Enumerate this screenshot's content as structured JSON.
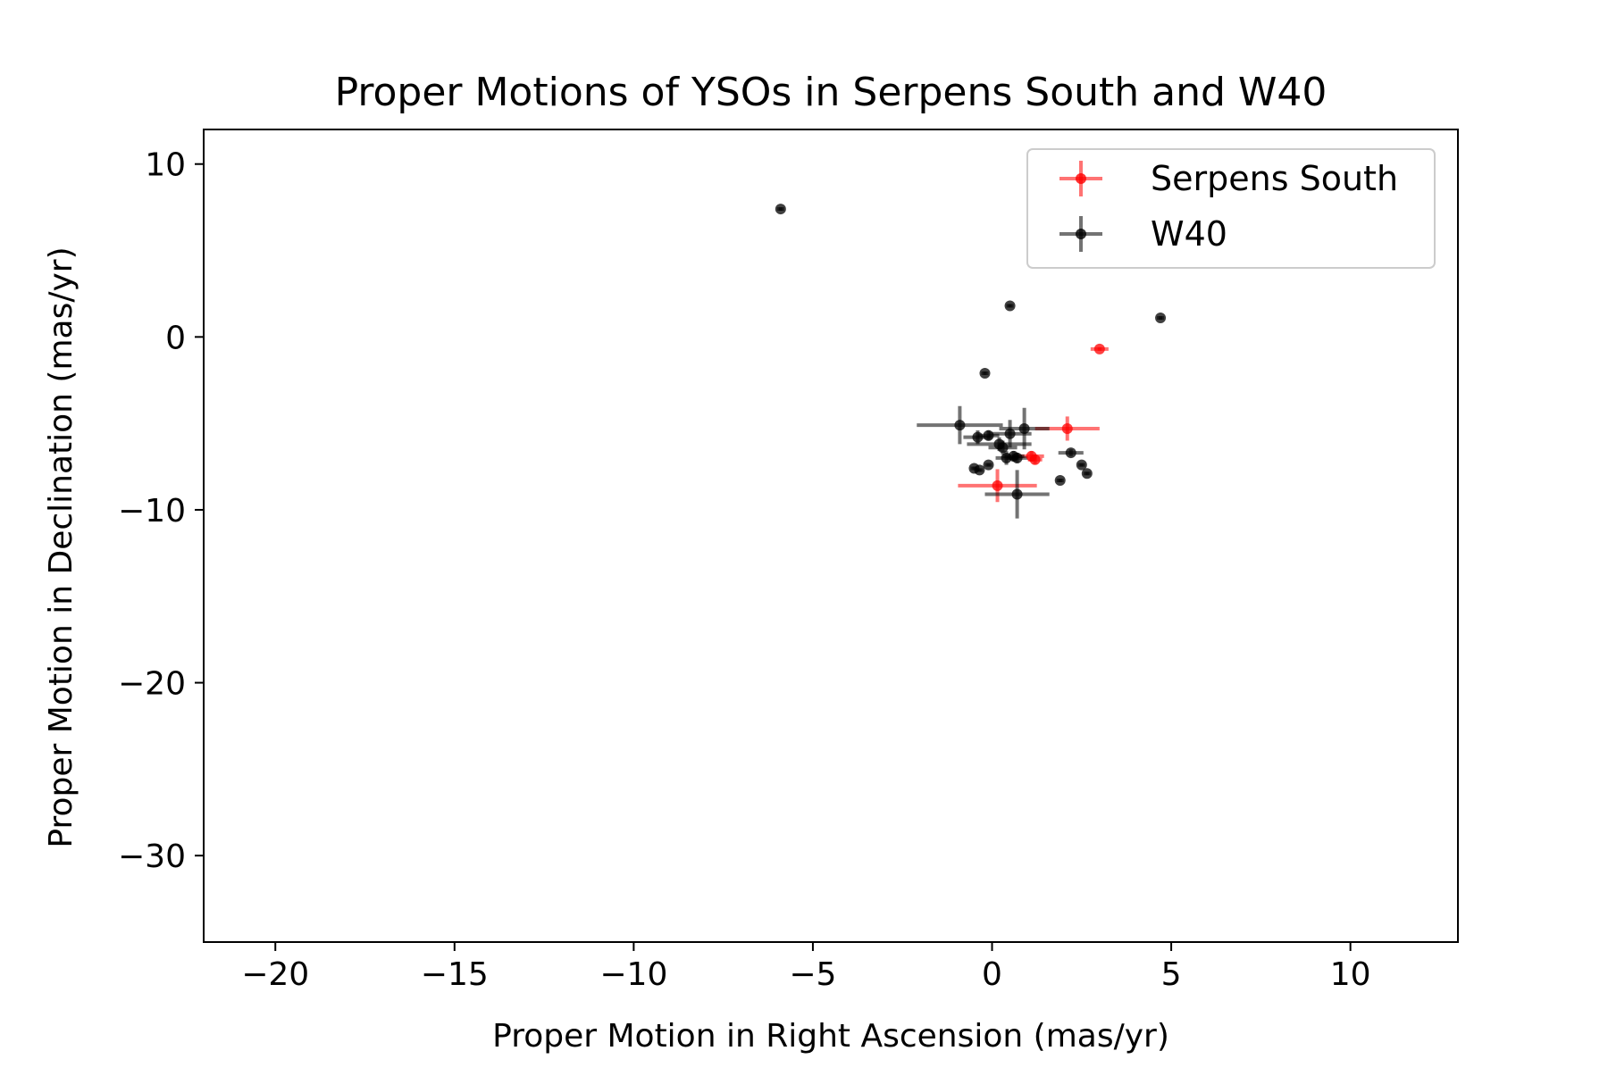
{
  "chart_data": {
    "type": "scatter",
    "title": "Proper Motions of YSOs in Serpens South and W40",
    "xlabel": "Proper Motion in Right Ascension (mas/yr)",
    "ylabel": "Proper Motion in Declination (mas/yr)",
    "xlim": [
      -22,
      13
    ],
    "ylim": [
      -35,
      10
    ],
    "xticks": [
      -20,
      -15,
      -10,
      -5,
      0,
      5,
      10
    ],
    "yticks": [
      10,
      0,
      -10,
      -20,
      -30
    ],
    "xtick_labels": [
      "−20",
      "−15",
      "−10",
      "−5",
      "0",
      "5",
      "10"
    ],
    "ytick_labels": [
      "10",
      "0",
      "−10",
      "−20",
      "−30"
    ],
    "grid": false,
    "legend_position": "top-right",
    "series": [
      {
        "name": "Serpens South",
        "color": "#ff0000",
        "points": [
          {
            "x": 3.0,
            "y": -0.7,
            "xerr": 0.25,
            "yerr": 0.1
          },
          {
            "x": 2.1,
            "y": -5.3,
            "xerr": 0.9,
            "yerr": 0.7
          },
          {
            "x": 1.1,
            "y": -6.9,
            "xerr": 0.35,
            "yerr": 0.3
          },
          {
            "x": 1.2,
            "y": -7.1,
            "xerr": 0.2,
            "yerr": 0.25
          },
          {
            "x": 0.15,
            "y": -8.6,
            "xerr": 1.1,
            "yerr": 0.95
          }
        ]
      },
      {
        "name": "W40",
        "color": "#000000",
        "points": [
          {
            "x": -5.9,
            "y": 7.4,
            "xerr": 0.1,
            "yerr": 0.1
          },
          {
            "x": 0.5,
            "y": 1.8,
            "xerr": 0.1,
            "yerr": 0.1
          },
          {
            "x": 4.7,
            "y": 1.1,
            "xerr": 0.1,
            "yerr": 0.1
          },
          {
            "x": -0.2,
            "y": -2.1,
            "xerr": 0.1,
            "yerr": 0.1
          },
          {
            "x": -0.9,
            "y": -5.1,
            "xerr": 1.2,
            "yerr": 1.1
          },
          {
            "x": 0.9,
            "y": -5.3,
            "xerr": 0.7,
            "yerr": 1.2
          },
          {
            "x": 0.5,
            "y": -5.6,
            "xerr": 0.6,
            "yerr": 0.8
          },
          {
            "x": -0.4,
            "y": -5.8,
            "xerr": 0.4,
            "yerr": 0.4
          },
          {
            "x": -0.1,
            "y": -5.7,
            "xerr": 0.3,
            "yerr": 0.3
          },
          {
            "x": 0.2,
            "y": -6.2,
            "xerr": 0.9,
            "yerr": 0.4
          },
          {
            "x": 0.3,
            "y": -6.4,
            "xerr": 0.4,
            "yerr": 0.4
          },
          {
            "x": 2.2,
            "y": -6.7,
            "xerr": 0.35,
            "yerr": 0.2
          },
          {
            "x": 0.6,
            "y": -6.9,
            "xerr": 0.3,
            "yerr": 0.3
          },
          {
            "x": 0.7,
            "y": -7.0,
            "xerr": 0.3,
            "yerr": 0.3
          },
          {
            "x": 0.4,
            "y": -7.0,
            "xerr": 0.3,
            "yerr": 0.4
          },
          {
            "x": -0.1,
            "y": -7.4,
            "xerr": 0.1,
            "yerr": 0.1
          },
          {
            "x": 2.5,
            "y": -7.4,
            "xerr": 0.1,
            "yerr": 0.1
          },
          {
            "x": -0.5,
            "y": -7.6,
            "xerr": 0.1,
            "yerr": 0.1
          },
          {
            "x": -0.35,
            "y": -7.7,
            "xerr": 0.1,
            "yerr": 0.1
          },
          {
            "x": 2.65,
            "y": -7.9,
            "xerr": 0.1,
            "yerr": 0.1
          },
          {
            "x": 1.9,
            "y": -8.3,
            "xerr": 0.1,
            "yerr": 0.1
          },
          {
            "x": 0.7,
            "y": -9.1,
            "xerr": 0.9,
            "yerr": 1.4
          }
        ]
      }
    ]
  }
}
